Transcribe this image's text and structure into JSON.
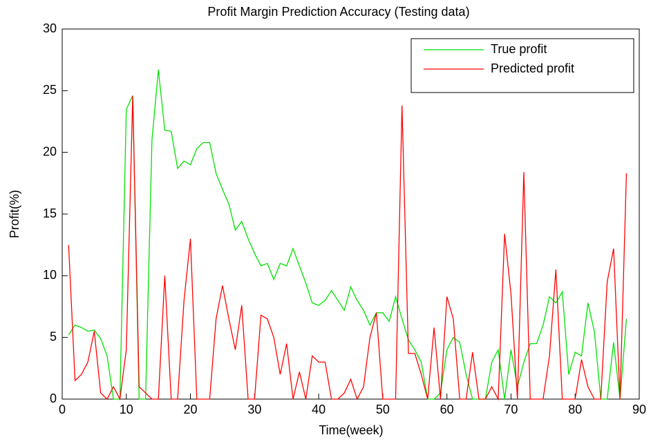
{
  "chart_data": {
    "type": "line",
    "title": "Profit Margin Prediction Accuracy (Testing data)",
    "xlabel": "Time(week)",
    "ylabel": "Profit(%)",
    "x": [
      1,
      2,
      3,
      4,
      5,
      6,
      7,
      8,
      9,
      10,
      11,
      12,
      13,
      14,
      15,
      16,
      17,
      18,
      19,
      20,
      21,
      22,
      23,
      24,
      25,
      26,
      27,
      28,
      29,
      30,
      31,
      32,
      33,
      34,
      35,
      36,
      37,
      38,
      39,
      40,
      41,
      42,
      43,
      44,
      45,
      46,
      47,
      48,
      49,
      50,
      51,
      52,
      53,
      54,
      55,
      56,
      57,
      58,
      59,
      60,
      61,
      62,
      63,
      64,
      65,
      66,
      67,
      68,
      69,
      70,
      71,
      72,
      73,
      74,
      75,
      76,
      77,
      78,
      79,
      80,
      81,
      82,
      83,
      84,
      85,
      86,
      87,
      88
    ],
    "series": [
      {
        "name": "True profit",
        "color": "#00e000",
        "values": [
          5.2,
          6,
          5.8,
          5.5,
          5.6,
          4.9,
          3.5,
          0,
          0,
          23.5,
          24.6,
          0,
          0,
          21,
          26.7,
          21.8,
          21.7,
          18.7,
          19.3,
          19,
          20.3,
          20.8,
          20.8,
          18.3,
          17,
          15.8,
          13.7,
          14.4,
          13,
          11.8,
          10.8,
          11,
          9.7,
          11,
          10.8,
          12.2,
          10.8,
          9.4,
          7.8,
          7.6,
          8,
          8.8,
          8,
          7.2,
          9.1,
          8,
          7.2,
          6,
          7,
          7,
          6.3,
          8.3,
          6.5,
          4.8,
          4,
          3,
          0,
          0,
          0.5,
          4,
          5,
          4.6,
          2,
          0,
          0,
          0,
          3,
          4,
          0,
          4,
          1,
          3,
          4.5,
          4.5,
          6,
          8.3,
          7.8,
          8.7,
          2,
          3.8,
          3.5,
          7.8,
          5.5,
          0,
          0,
          4.6,
          0,
          6.5
        ]
      },
      {
        "name": "Predicted profit",
        "color": "#ff0000",
        "values": [
          12.5,
          1.5,
          2,
          3,
          5.5,
          0.5,
          0,
          1,
          0,
          4,
          24.6,
          1,
          0.5,
          0,
          0,
          10,
          0,
          0,
          8,
          13,
          0,
          0,
          0,
          6.5,
          9.2,
          6.5,
          4,
          7.6,
          0,
          0,
          6.8,
          6.5,
          5,
          2,
          4.5,
          0,
          2.2,
          0,
          3.5,
          3,
          3,
          0,
          0,
          0.5,
          1.6,
          0,
          1,
          5,
          7,
          0,
          0,
          0,
          23.8,
          3.7,
          3.7,
          2,
          0,
          5.8,
          0,
          8.3,
          6.5,
          0,
          0,
          3.8,
          0,
          0,
          1,
          0,
          13.4,
          8.5,
          0,
          18.4,
          0,
          0,
          0,
          3.5,
          10.5,
          0,
          0,
          0,
          3.2,
          1,
          0,
          0,
          9.5,
          12.2,
          0,
          18.3
        ]
      }
    ],
    "xlim": [
      0,
      90
    ],
    "xticks": [
      0,
      10,
      20,
      30,
      40,
      50,
      60,
      70,
      80,
      90
    ],
    "ylim": [
      0,
      30
    ],
    "yticks": [
      0,
      5,
      10,
      15,
      20,
      25,
      30
    ],
    "legend": "upper right"
  }
}
